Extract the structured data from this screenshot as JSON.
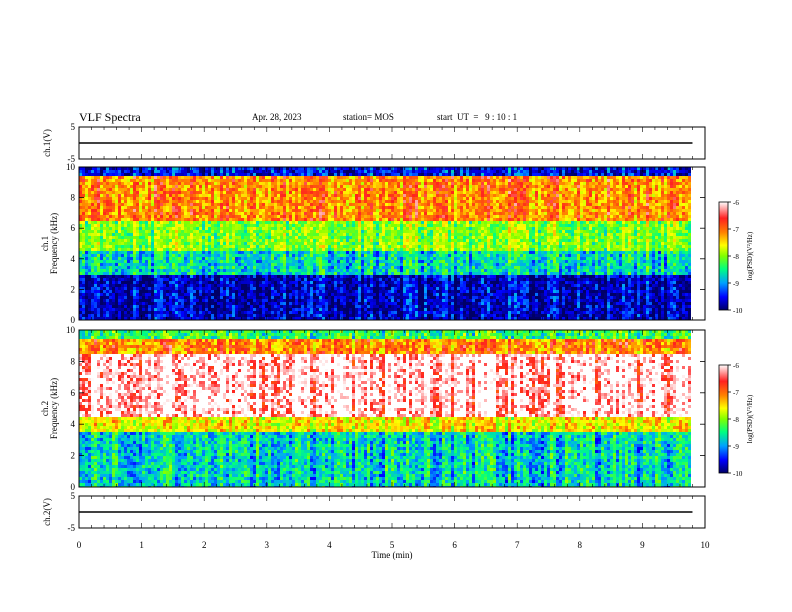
{
  "header": {
    "title": "VLF Spectra",
    "date": "Apr. 28, 2023",
    "station": "station= MOS",
    "start": "start  UT  =   9 : 10 : 1"
  },
  "chart_data": [
    {
      "type": "line",
      "ylabel": "ch.1(V)",
      "ylim": [
        -5,
        5
      ],
      "yticks": [
        -5,
        5
      ],
      "series": [
        {
          "x": [
            0,
            9.8
          ],
          "y": [
            0,
            0
          ]
        }
      ]
    },
    {
      "type": "heatmap",
      "ylabel_line1": "ch.1",
      "ylabel_line2": "Frequency (kHz)",
      "ylim": [
        0,
        10
      ],
      "yticks": [
        0,
        2,
        4,
        6,
        8,
        10
      ],
      "x_extent": [
        0,
        9.8
      ],
      "dominant_levels": [
        {
          "freq_band": [
            9.5,
            10
          ],
          "level": -9.5
        },
        {
          "freq_band": [
            6.5,
            9.5
          ],
          "level": -7
        },
        {
          "freq_band": [
            4.5,
            6.5
          ],
          "level": -8
        },
        {
          "freq_band": [
            3,
            4.5
          ],
          "level": -8.7
        },
        {
          "freq_band": [
            0,
            3
          ],
          "level": -9.7
        }
      ],
      "colorbar": {
        "label": "log(PSD)(V²/Hz)",
        "min": -10,
        "max": -6,
        "ticks": [
          -6,
          -7,
          -8,
          -9,
          -10
        ]
      }
    },
    {
      "type": "heatmap",
      "ylabel_line1": "ch.2",
      "ylabel_line2": "Frequency (kHz)",
      "ylim": [
        0,
        10
      ],
      "yticks": [
        0,
        2,
        4,
        6,
        8,
        10
      ],
      "x_extent": [
        0,
        9.8
      ],
      "dominant_levels": [
        {
          "freq_band": [
            9.5,
            10
          ],
          "level": -8.3
        },
        {
          "freq_band": [
            8.5,
            9.5
          ],
          "level": -7
        },
        {
          "freq_band": [
            4.5,
            8.5
          ],
          "level": -6
        },
        {
          "freq_band": [
            3.5,
            4.5
          ],
          "level": -7.5
        },
        {
          "freq_band": [
            0,
            3.5
          ],
          "level": -8.7
        }
      ],
      "colorbar": {
        "label": "log(PSD)(V²/Hz)",
        "min": -10,
        "max": -6,
        "ticks": [
          -6,
          -7,
          -8,
          -9,
          -10
        ]
      }
    },
    {
      "type": "line",
      "ylabel": "ch.2(V)",
      "ylim": [
        -5,
        5
      ],
      "yticks": [
        -5,
        5
      ],
      "series": [
        {
          "x": [
            0,
            9.8
          ],
          "y": [
            0,
            0
          ]
        }
      ]
    }
  ],
  "xaxis": {
    "label": "Time (min)",
    "xlim": [
      0,
      10
    ],
    "ticks": [
      "0",
      "1",
      "2",
      "3",
      "4",
      "5",
      "6",
      "7",
      "8",
      "9",
      "10"
    ]
  },
  "colors": {
    "colormap": [
      "#000066",
      "#0000ff",
      "#00a0ff",
      "#00ff80",
      "#80ff00",
      "#ffff00",
      "#ff8000",
      "#ff2020",
      "#ffffff"
    ]
  }
}
